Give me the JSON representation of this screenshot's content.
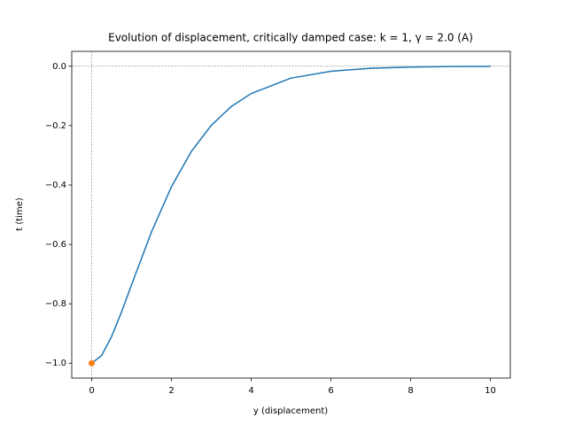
{
  "chart_data": {
    "type": "line",
    "title": "Evolution of displacement, critically damped case: k = 1, γ = 2.0 (A)",
    "x_label": "y (displacement)",
    "y_label": "t (time)",
    "xlim": [
      -0.5,
      10.5
    ],
    "ylim": [
      -1.05,
      0.05
    ],
    "xticks": [
      0,
      2,
      4,
      6,
      8,
      10
    ],
    "yticks": [
      {
        "value": -1.0,
        "label": "−1.0"
      },
      {
        "value": -0.8,
        "label": "−0.8"
      },
      {
        "value": -0.6,
        "label": "−0.6"
      },
      {
        "value": -0.4,
        "label": "−0.4"
      },
      {
        "value": -0.2,
        "label": "−0.2"
      },
      {
        "value": 0,
        "label": "0.0"
      }
    ],
    "axhline": 0,
    "axvline": 0,
    "grid": false,
    "series": [
      {
        "type": "line",
        "color": "#1f77b4",
        "x": [
          0,
          0.25,
          0.5,
          0.75,
          1,
          1.5,
          2,
          2.5,
          3,
          3.5,
          4,
          5,
          6,
          7,
          8,
          9,
          10
        ],
        "values": [
          -1,
          -0.974,
          -0.91,
          -0.827,
          -0.736,
          -0.558,
          -0.406,
          -0.287,
          -0.199,
          -0.136,
          -0.092,
          -0.04,
          -0.017,
          -0.007,
          -0.003,
          -0.001,
          -0.0005
        ]
      },
      {
        "type": "scatter",
        "color": "#ff7f0e",
        "x": [
          0
        ],
        "values": [
          -1
        ]
      }
    ]
  }
}
